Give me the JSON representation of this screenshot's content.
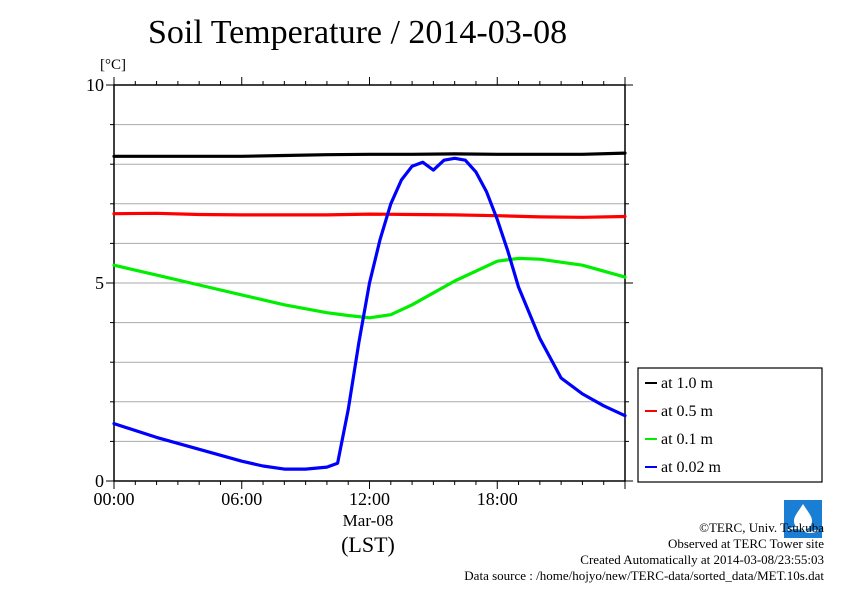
{
  "header": {
    "title": "Soil Temperature / 2014-03-08"
  },
  "chart_data": {
    "type": "line",
    "title": "Soil Temperature / 2014-03-08",
    "ylabel": "[°C]",
    "xlabel": "(LST)",
    "date_label": "Mar-08",
    "ylim": [
      0,
      10
    ],
    "xlim": [
      0,
      24
    ],
    "y_ticks": [
      0,
      5,
      10
    ],
    "y_tick_labels": [
      "0",
      "5",
      "10"
    ],
    "x_ticks": [
      0,
      6,
      12,
      18
    ],
    "x_tick_labels": [
      "00:00",
      "06:00",
      "12:00",
      "18:00"
    ],
    "grid": true,
    "legend_position": "right",
    "series": [
      {
        "name": "at 1.0 m",
        "color": "#000000",
        "x": [
          0,
          2,
          4,
          6,
          8,
          10,
          12,
          14,
          16,
          18,
          20,
          22,
          24
        ],
        "y": [
          8.2,
          8.2,
          8.2,
          8.2,
          8.22,
          8.24,
          8.25,
          8.25,
          8.26,
          8.25,
          8.25,
          8.25,
          8.28
        ]
      },
      {
        "name": "at 0.5 m",
        "color": "#ff0000",
        "x": [
          0,
          2,
          4,
          6,
          8,
          10,
          12,
          14,
          16,
          18,
          20,
          22,
          24
        ],
        "y": [
          6.75,
          6.76,
          6.73,
          6.72,
          6.72,
          6.72,
          6.74,
          6.73,
          6.72,
          6.7,
          6.67,
          6.66,
          6.68
        ]
      },
      {
        "name": "at 0.1 m",
        "color": "#00ee00",
        "x": [
          0,
          2,
          4,
          6,
          8,
          10,
          11,
          12,
          13,
          14,
          16,
          18,
          19,
          20,
          22,
          24
        ],
        "y": [
          5.45,
          5.2,
          4.95,
          4.7,
          4.45,
          4.25,
          4.18,
          4.12,
          4.2,
          4.45,
          5.05,
          5.55,
          5.62,
          5.6,
          5.45,
          5.15
        ]
      },
      {
        "name": "at 0.02 m",
        "color": "#0000ff",
        "x": [
          0,
          2,
          4,
          6,
          7,
          8,
          9,
          10,
          10.5,
          11,
          11.5,
          12,
          12.5,
          13,
          13.5,
          14,
          14.5,
          15,
          15.5,
          16,
          16.5,
          17,
          17.5,
          18,
          18.5,
          19,
          20,
          21,
          22,
          23,
          24
        ],
        "y": [
          1.45,
          1.1,
          0.8,
          0.5,
          0.38,
          0.3,
          0.3,
          0.35,
          0.45,
          1.8,
          3.5,
          5.0,
          6.1,
          7.0,
          7.6,
          7.95,
          8.05,
          7.85,
          8.1,
          8.15,
          8.1,
          7.8,
          7.3,
          6.6,
          5.8,
          4.9,
          3.6,
          2.6,
          2.2,
          1.9,
          1.65
        ]
      }
    ]
  },
  "credits": {
    "copyright": "©TERC, Univ. Tsukuba",
    "site": "Observed at TERC Tower site",
    "created": "Created Automatically at 2014-03-08/23:55:03",
    "source": "Data source : /home/hojyo/new/TERC-data/sorted_data/MET.10s.dat"
  },
  "logo": {
    "text": "TERC"
  }
}
